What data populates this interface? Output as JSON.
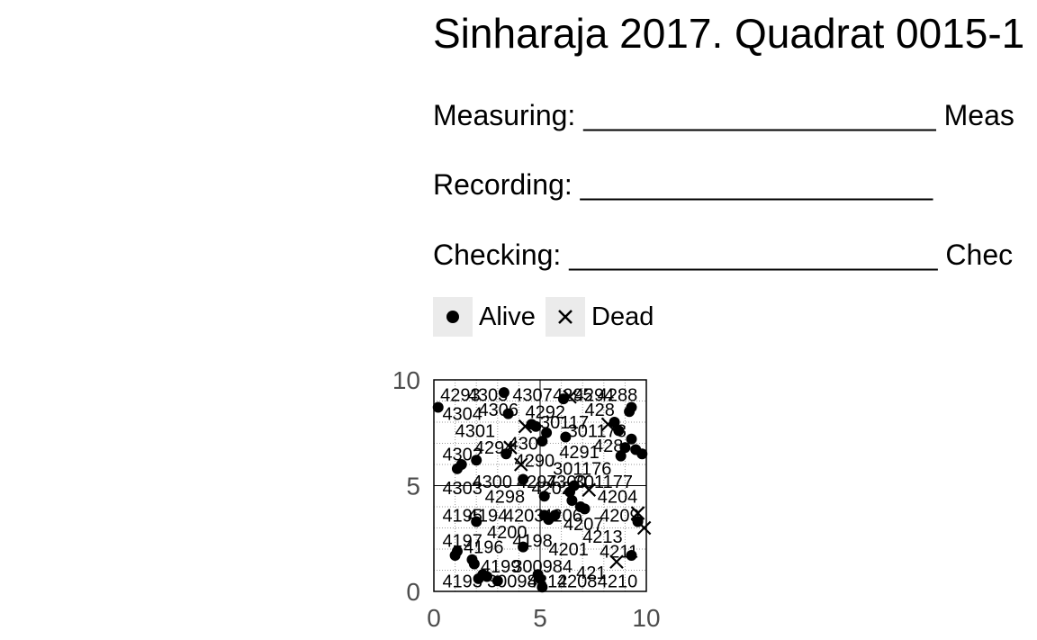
{
  "header": {
    "title": "Sinharaja 2017. Quadrat 0015-1",
    "measuring_label": "Measuring: ______________________ Meas",
    "recording_label": "Recording: ______________________",
    "checking_label": "Checking: _______________________ Chec"
  },
  "legend": {
    "alive_label": "Alive",
    "dead_label": "Dead"
  },
  "chart_data": {
    "type": "scatter",
    "xlim": [
      0,
      10
    ],
    "ylim": [
      0,
      10
    ],
    "x_ticks": [
      "0",
      "5",
      "10"
    ],
    "y_ticks": [
      "0",
      "5",
      "10"
    ],
    "grid": true,
    "legend_position": "top-left",
    "colors": {
      "points": "#000000",
      "grid_major": "#000000",
      "grid_minor": "#9a9a9a"
    },
    "alive": [
      {
        "x": 0.2,
        "y": 8.7
      },
      {
        "x": 1.1,
        "y": 5.8
      },
      {
        "x": 1.3,
        "y": 6.0
      },
      {
        "x": 1.0,
        "y": 1.7
      },
      {
        "x": 1.1,
        "y": 1.9
      },
      {
        "x": 1.8,
        "y": 1.5
      },
      {
        "x": 1.9,
        "y": 1.3
      },
      {
        "x": 2.0,
        "y": 6.2
      },
      {
        "x": 2.0,
        "y": 3.3
      },
      {
        "x": 2.1,
        "y": 0.6
      },
      {
        "x": 2.3,
        "y": 0.8
      },
      {
        "x": 2.5,
        "y": 0.7
      },
      {
        "x": 3.0,
        "y": 0.5
      },
      {
        "x": 3.3,
        "y": 9.4
      },
      {
        "x": 3.5,
        "y": 8.4
      },
      {
        "x": 3.4,
        "y": 6.5
      },
      {
        "x": 4.2,
        "y": 5.3
      },
      {
        "x": 4.2,
        "y": 2.1
      },
      {
        "x": 4.6,
        "y": 7.9
      },
      {
        "x": 4.8,
        "y": 7.8
      },
      {
        "x": 4.9,
        "y": 0.8
      },
      {
        "x": 5.0,
        "y": 0.6
      },
      {
        "x": 5.1,
        "y": 0.2
      },
      {
        "x": 5.1,
        "y": 7.1
      },
      {
        "x": 5.2,
        "y": 4.5
      },
      {
        "x": 5.2,
        "y": 3.6
      },
      {
        "x": 5.3,
        "y": 7.5
      },
      {
        "x": 5.4,
        "y": 3.4
      },
      {
        "x": 5.7,
        "y": 3.6
      },
      {
        "x": 6.1,
        "y": 9.1
      },
      {
        "x": 6.2,
        "y": 7.3
      },
      {
        "x": 6.4,
        "y": 4.7
      },
      {
        "x": 6.5,
        "y": 4.3
      },
      {
        "x": 6.6,
        "y": 5.0
      },
      {
        "x": 6.9,
        "y": 4.0
      },
      {
        "x": 7.1,
        "y": 3.9
      },
      {
        "x": 8.5,
        "y": 8.0
      },
      {
        "x": 8.7,
        "y": 7.6
      },
      {
        "x": 8.8,
        "y": 6.4
      },
      {
        "x": 9.0,
        "y": 6.8
      },
      {
        "x": 9.2,
        "y": 8.5
      },
      {
        "x": 9.3,
        "y": 8.7
      },
      {
        "x": 9.3,
        "y": 7.2
      },
      {
        "x": 9.5,
        "y": 6.7
      },
      {
        "x": 9.8,
        "y": 6.5
      },
      {
        "x": 9.3,
        "y": 1.7
      },
      {
        "x": 9.6,
        "y": 3.3
      }
    ],
    "dead": [
      {
        "x": 4.1,
        "y": 6.0
      },
      {
        "x": 4.3,
        "y": 7.8
      },
      {
        "x": 3.6,
        "y": 6.8
      },
      {
        "x": 6.4,
        "y": 9.2
      },
      {
        "x": 7.3,
        "y": 4.8
      },
      {
        "x": 8.6,
        "y": 1.4
      },
      {
        "x": 9.6,
        "y": 3.7
      },
      {
        "x": 9.9,
        "y": 3.0
      },
      {
        "x": 8.2,
        "y": 7.9
      }
    ],
    "labels": [
      {
        "text": "4293",
        "x": 0.3,
        "y": 9.3
      },
      {
        "text": "4303",
        "x": 1.6,
        "y": 9.3
      },
      {
        "text": "4307",
        "x": 3.7,
        "y": 9.3
      },
      {
        "text": "4295",
        "x": 5.6,
        "y": 9.3
      },
      {
        "text": "4294",
        "x": 6.6,
        "y": 9.3
      },
      {
        "text": "4288",
        "x": 7.7,
        "y": 9.3
      },
      {
        "text": "4304",
        "x": 0.4,
        "y": 8.4
      },
      {
        "text": "4306",
        "x": 2.1,
        "y": 8.6
      },
      {
        "text": "4292",
        "x": 4.3,
        "y": 8.5
      },
      {
        "text": "428",
        "x": 7.1,
        "y": 8.6
      },
      {
        "text": "4301",
        "x": 1.0,
        "y": 7.6
      },
      {
        "text": "30117",
        "x": 5.0,
        "y": 8.0
      },
      {
        "text": "301178",
        "x": 6.3,
        "y": 7.6
      },
      {
        "text": "4302",
        "x": 0.4,
        "y": 6.5
      },
      {
        "text": "4294",
        "x": 1.9,
        "y": 6.8
      },
      {
        "text": "430",
        "x": 3.5,
        "y": 7.0
      },
      {
        "text": "4291",
        "x": 5.9,
        "y": 6.6
      },
      {
        "text": "428",
        "x": 7.5,
        "y": 6.9
      },
      {
        "text": "4290",
        "x": 3.8,
        "y": 6.2
      },
      {
        "text": "301176",
        "x": 5.6,
        "y": 5.8
      },
      {
        "text": "4300",
        "x": 1.8,
        "y": 5.2
      },
      {
        "text": "4297",
        "x": 3.9,
        "y": 5.2
      },
      {
        "text": "4300",
        "x": 5.3,
        "y": 5.2
      },
      {
        "text": "301177",
        "x": 6.6,
        "y": 5.2
      },
      {
        "text": "4303",
        "x": 0.4,
        "y": 4.9
      },
      {
        "text": "4202",
        "x": 4.6,
        "y": 4.9
      },
      {
        "text": "4298",
        "x": 2.4,
        "y": 4.5
      },
      {
        "text": "4204",
        "x": 7.7,
        "y": 4.5
      },
      {
        "text": "4195",
        "x": 0.4,
        "y": 3.6
      },
      {
        "text": "4194",
        "x": 1.6,
        "y": 3.6
      },
      {
        "text": "4203",
        "x": 3.3,
        "y": 3.6
      },
      {
        "text": "4206",
        "x": 5.1,
        "y": 3.6
      },
      {
        "text": "4209",
        "x": 7.8,
        "y": 3.6
      },
      {
        "text": "4207",
        "x": 6.1,
        "y": 3.2
      },
      {
        "text": "4200",
        "x": 2.5,
        "y": 2.8
      },
      {
        "text": "4213",
        "x": 7.0,
        "y": 2.6
      },
      {
        "text": "4197",
        "x": 0.4,
        "y": 2.4
      },
      {
        "text": "4198",
        "x": 3.7,
        "y": 2.4
      },
      {
        "text": "4196",
        "x": 1.4,
        "y": 2.1
      },
      {
        "text": "4201",
        "x": 5.4,
        "y": 2.0
      },
      {
        "text": "4211",
        "x": 7.8,
        "y": 1.9
      },
      {
        "text": "4199",
        "x": 2.2,
        "y": 1.2
      },
      {
        "text": "300984",
        "x": 3.7,
        "y": 1.2
      },
      {
        "text": "421",
        "x": 6.7,
        "y": 0.9
      },
      {
        "text": "4193",
        "x": 0.4,
        "y": 0.5
      },
      {
        "text": "300983",
        "x": 2.5,
        "y": 0.5
      },
      {
        "text": "4212",
        "x": 4.4,
        "y": 0.5
      },
      {
        "text": "4208",
        "x": 5.8,
        "y": 0.5
      },
      {
        "text": "4210",
        "x": 7.7,
        "y": 0.5
      }
    ]
  }
}
